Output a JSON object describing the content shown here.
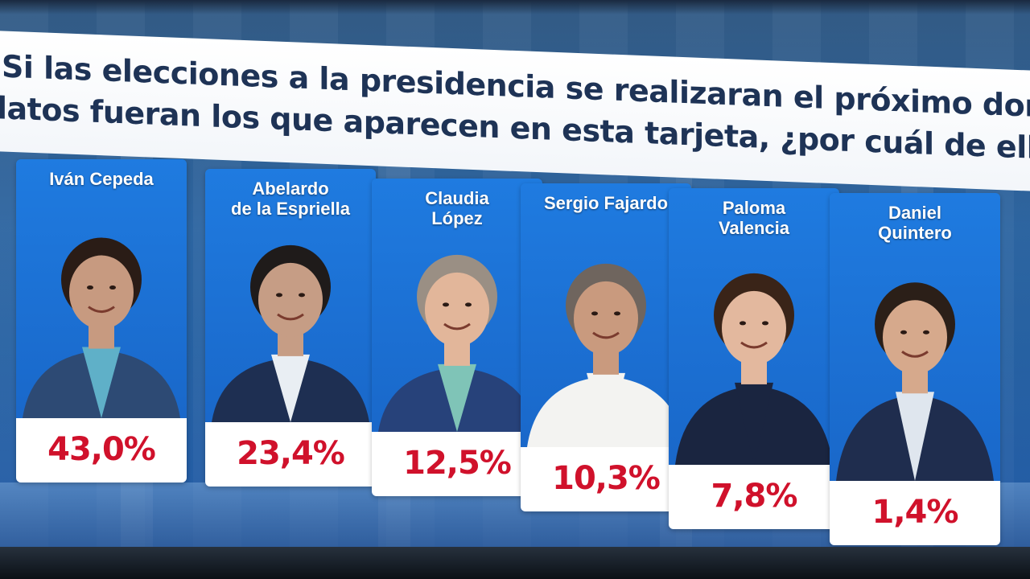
{
  "question": {
    "line1": "Si las elecciones a la presidencia se realizaran el próximo domingo,",
    "line2": "latos fueran los que aparecen en esta tarjeta, ¿por cuál de ellos votar"
  },
  "colors": {
    "card_blue": "#1f7be0",
    "percent_red": "#d0112b",
    "title_navy": "#1e3356"
  },
  "chart_data": {
    "type": "bar",
    "categories": [
      "Iván Cepeda",
      "Abelardo de la Espriella",
      "Claudia López",
      "Sergio Fajardo",
      "Paloma Valencia",
      "Daniel Quintero"
    ],
    "values": [
      43.0,
      23.4,
      12.5,
      10.3,
      7.8,
      1.4
    ],
    "value_labels": [
      "43,0%",
      "23,4%",
      "12,5%",
      "10,3%",
      "7,8%",
      "1,4%"
    ],
    "title": "",
    "xlabel": "",
    "ylabel": "",
    "unit": "%",
    "candidates": [
      {
        "name": "Iván Cepeda",
        "label": "43,0%",
        "suit": "#2d4a74",
        "shirt": "#5fb0c8",
        "skin": "#c79a80",
        "hair": "#2a1c16"
      },
      {
        "name": "Abelardo\nde la Espriella",
        "label": "23,4%",
        "suit": "#1e2f52",
        "shirt": "#e9eef3",
        "skin": "#c69d85",
        "hair": "#1f1b1a"
      },
      {
        "name": "Claudia\nLópez",
        "label": "12,5%",
        "suit": "#27427a",
        "shirt": "#7fc4b7",
        "skin": "#e2b69a",
        "hair": "#9a8f84"
      },
      {
        "name": "Sergio Fajardo",
        "label": "10,3%",
        "suit": "#f3f3f1",
        "shirt": "#f3f3f1",
        "skin": "#c99a7e",
        "hair": "#6f655e"
      },
      {
        "name": "Paloma\nValencia",
        "label": "7,8%",
        "suit": "#1a2540",
        "shirt": "#1a2540",
        "skin": "#e3b89e",
        "hair": "#3a2418"
      },
      {
        "name": "Daniel\nQuintero",
        "label": "1,4%",
        "suit": "#1f2d4e",
        "shirt": "#dfe6ee",
        "skin": "#d6a98c",
        "hair": "#2b1f18"
      }
    ]
  }
}
